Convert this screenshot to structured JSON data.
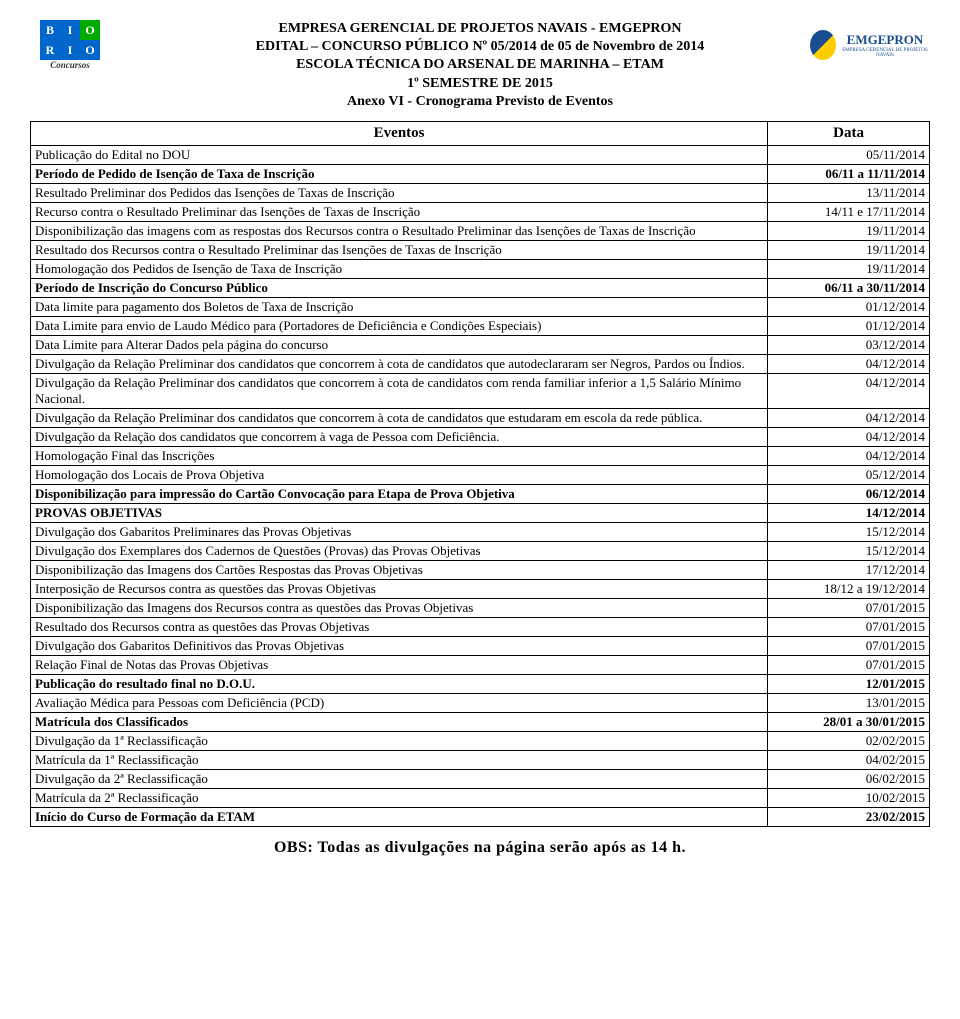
{
  "header": {
    "line1": "EMPRESA GERENCIAL DE PROJETOS NAVAIS - EMGEPRON",
    "line2": "EDITAL – CONCURSO PÚBLICO Nº 05/2014 de 05 de Novembro de 2014",
    "line3": "ESCOLA TÉCNICA DO ARSENAL DE MARINHA – ETAM",
    "line4": "1º SEMESTRE DE 2015",
    "line5": "Anexo VI - Cronograma Previsto de Eventos"
  },
  "logo_left": {
    "top": "BIO",
    "bottom": "RIO",
    "subtitle": "Concursos"
  },
  "logo_right": {
    "text": "EMGEPRON",
    "subtitle": "EMPRESA GERENCIAL DE PROJETOS NAVAIS"
  },
  "table": {
    "header_eventos": "Eventos",
    "header_data": "Data"
  },
  "rows": [
    {
      "evento": "Publicação do Edital no DOU",
      "data": "05/11/2014",
      "bold": false
    },
    {
      "evento": "Período de Pedido de Isenção de Taxa de Inscrição",
      "data": "06/11 a 11/11/2014",
      "bold": true
    },
    {
      "evento": "Resultado Preliminar dos Pedidos das Isenções de Taxas de Inscrição",
      "data": "13/11/2014",
      "bold": false
    },
    {
      "evento": "Recurso contra o Resultado Preliminar das Isenções de Taxas de Inscrição",
      "data": "14/11 e 17/11/2014",
      "bold": false
    },
    {
      "evento": "Disponibilização das imagens com as respostas dos Recursos contra o Resultado Preliminar das Isenções de Taxas de Inscrição",
      "data": "19/11/2014",
      "bold": false
    },
    {
      "evento": "Resultado dos Recursos contra o Resultado Preliminar das Isenções de Taxas de Inscrição",
      "data": "19/11/2014",
      "bold": false
    },
    {
      "evento": "Homologação dos Pedidos de Isenção de Taxa de Inscrição",
      "data": "19/11/2014",
      "bold": false
    },
    {
      "evento": "Período de Inscrição do Concurso Público",
      "data": "06/11 a 30/11/2014",
      "bold": true
    },
    {
      "evento": "Data limite para pagamento dos Boletos de Taxa de Inscrição",
      "data": "01/12/2014",
      "bold": false
    },
    {
      "evento": "Data Limite para envio de Laudo Médico para (Portadores de Deficiência e Condições Especiais)",
      "data": "01/12/2014",
      "bold": false
    },
    {
      "evento": "Data Limite para Alterar Dados pela página do concurso",
      "data": "03/12/2014",
      "bold": false
    },
    {
      "evento": "Divulgação da Relação Preliminar dos candidatos que concorrem à cota de candidatos que autodeclararam ser Negros, Pardos ou Índios.",
      "data": "04/12/2014",
      "bold": false
    },
    {
      "evento": "Divulgação da Relação Preliminar dos candidatos que concorrem à cota de candidatos com renda familiar inferior a 1,5 Salário Mínimo Nacional.",
      "data": "04/12/2014",
      "bold": false
    },
    {
      "evento": "Divulgação da Relação Preliminar dos candidatos que concorrem à cota de candidatos que estudaram em escola da rede pública.",
      "data": "04/12/2014",
      "bold": false
    },
    {
      "evento": "Divulgação da Relação dos candidatos que concorrem à vaga de Pessoa com Deficiência.",
      "data": "04/12/2014",
      "bold": false
    },
    {
      "evento": "Homologação Final das Inscrições",
      "data": "04/12/2014",
      "bold": false
    },
    {
      "evento": "Homologação dos Locais de Prova Objetiva",
      "data": "05/12/2014",
      "bold": false
    },
    {
      "evento": "Disponibilização para impressão do Cartão Convocação para Etapa de Prova Objetiva",
      "data": "06/12/2014",
      "bold": true
    },
    {
      "evento": "PROVAS OBJETIVAS",
      "data": "14/12/2014",
      "bold": true
    },
    {
      "evento": "Divulgação dos Gabaritos Preliminares das Provas Objetivas",
      "data": "15/12/2014",
      "bold": false
    },
    {
      "evento": "Divulgação dos Exemplares dos Cadernos de Questões (Provas) das Provas Objetivas",
      "data": "15/12/2014",
      "bold": false
    },
    {
      "evento": "Disponibilização das Imagens dos Cartões Respostas das Provas Objetivas",
      "data": "17/12/2014",
      "bold": false
    },
    {
      "evento": "Interposição de Recursos contra as questões das Provas Objetivas",
      "data": "18/12 a 19/12/2014",
      "bold": false
    },
    {
      "evento": "Disponibilização das Imagens dos Recursos contra as questões das Provas Objetivas",
      "data": "07/01/2015",
      "bold": false
    },
    {
      "evento": "Resultado dos Recursos contra as questões das Provas Objetivas",
      "data": "07/01/2015",
      "bold": false
    },
    {
      "evento": "Divulgação dos Gabaritos Definitivos das Provas Objetivas",
      "data": "07/01/2015",
      "bold": false
    },
    {
      "evento": "Relação Final de Notas das Provas Objetivas",
      "data": "07/01/2015",
      "bold": false
    },
    {
      "evento": "Publicação do resultado final no D.O.U.",
      "data": "12/01/2015",
      "bold": true
    },
    {
      "evento": "Avaliação Médica para Pessoas com Deficiência (PCD)",
      "data": "13/01/2015",
      "bold": false
    },
    {
      "evento": "Matrícula dos Classificados",
      "data": "28/01 a 30/01/2015",
      "bold": true
    },
    {
      "evento": "Divulgação da 1ª Reclassificação",
      "data": "02/02/2015",
      "bold": false
    },
    {
      "evento": "Matrícula da 1ª Reclassificação",
      "data": "04/02/2015",
      "bold": false
    },
    {
      "evento": "Divulgação da 2ª Reclassificação",
      "data": "06/02/2015",
      "bold": false
    },
    {
      "evento": "Matrícula da 2ª Reclassificação",
      "data": "10/02/2015",
      "bold": false
    },
    {
      "evento": "Início do Curso de Formação da ETAM",
      "data": "23/02/2015",
      "bold": true
    }
  ],
  "footer": "OBS: Todas as divulgações na página serão após as 14 h."
}
